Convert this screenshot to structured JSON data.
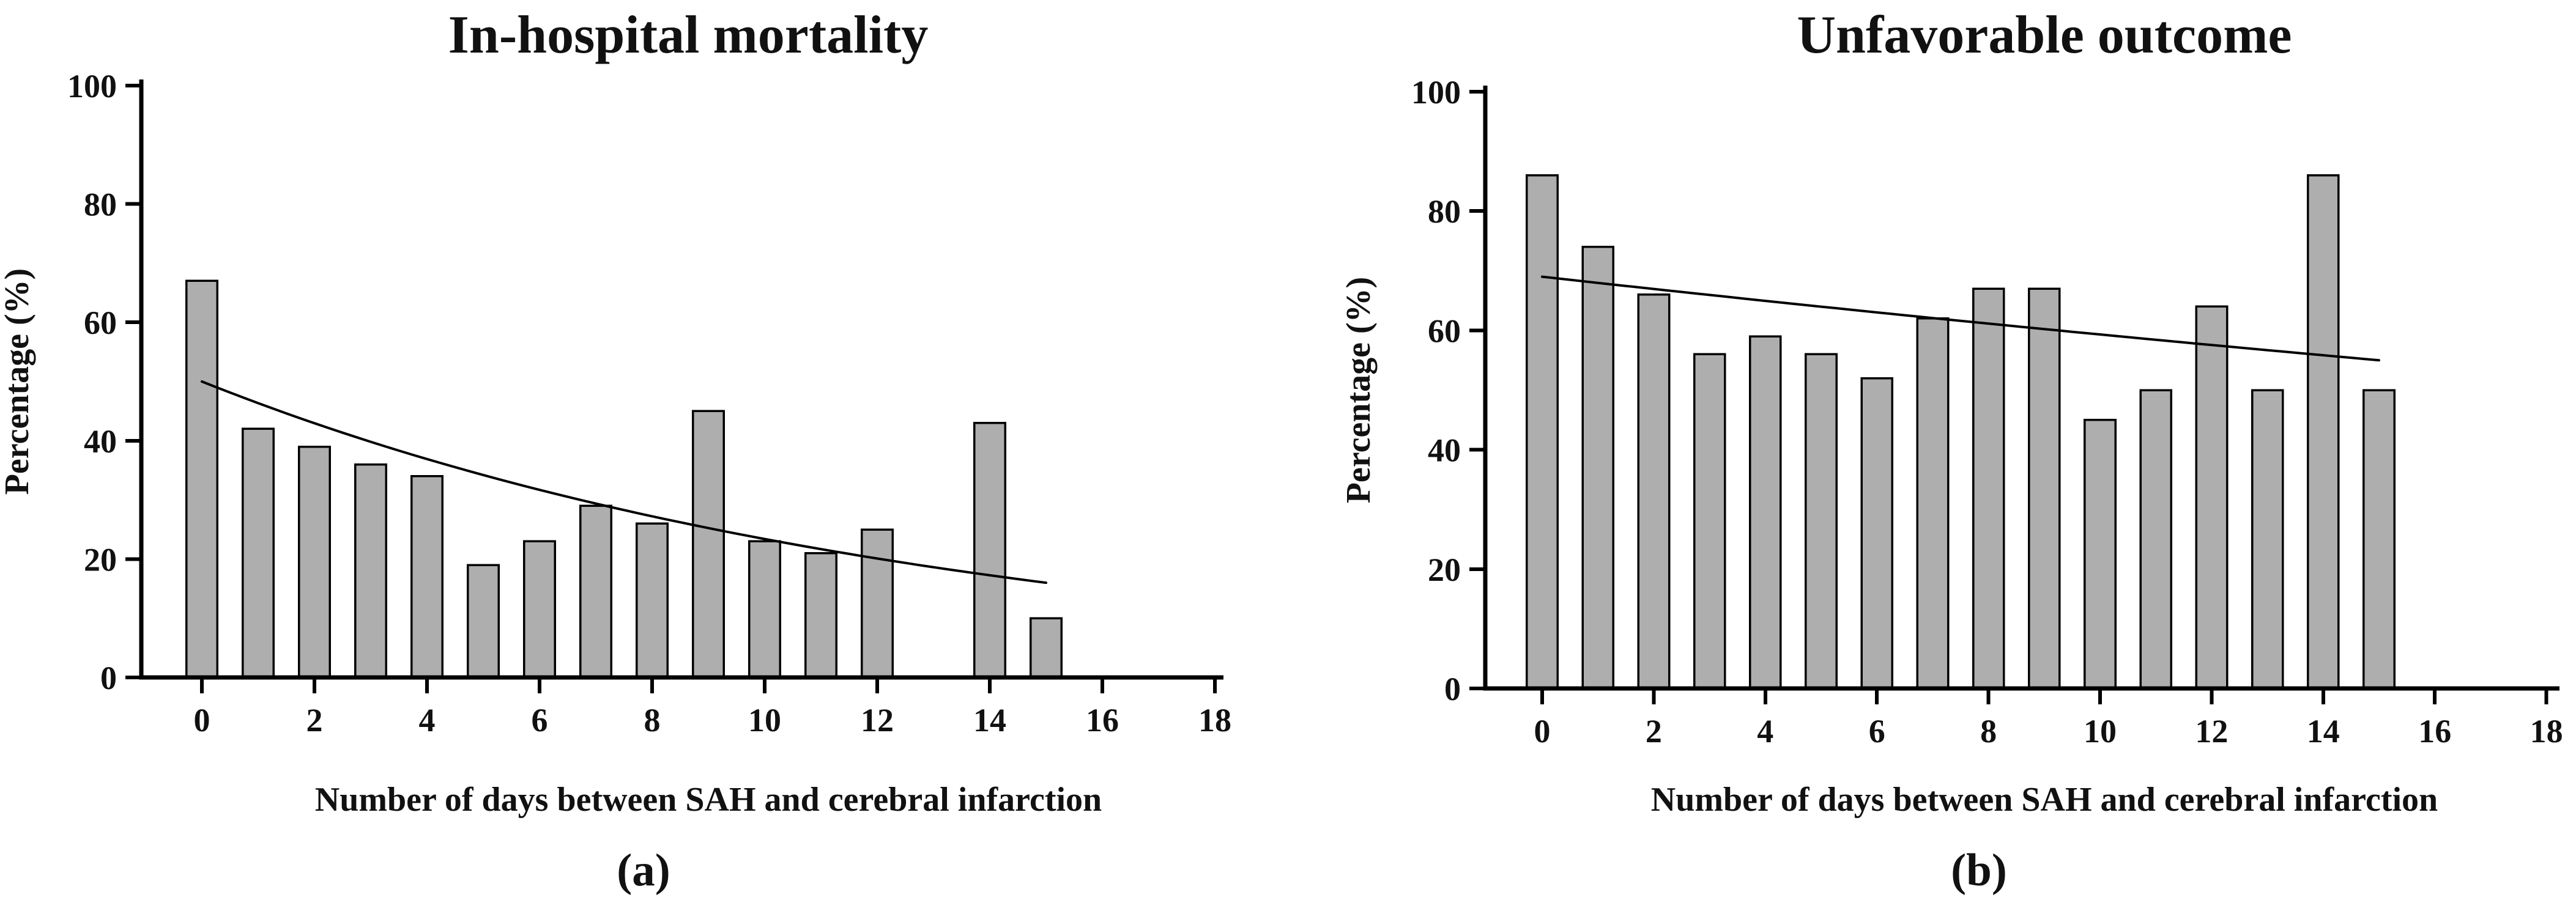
{
  "figure": {
    "background": "#ffffff",
    "bar_fill": "#aeaeae",
    "bar_edge": "#000000",
    "axis_color": "#000000",
    "trend_color": "#000000",
    "text_color": "#111111"
  },
  "chart_data": [
    {
      "type": "bar",
      "panel": "a",
      "title": "In-hospital mortality",
      "xlabel": "Number of days between SAH and cerebral infarction",
      "ylabel": "Percentage (%)",
      "caption": "(a)",
      "x": [
        0,
        1,
        2,
        3,
        4,
        5,
        6,
        7,
        8,
        9,
        10,
        11,
        12,
        13,
        14,
        15
      ],
      "values": [
        67,
        42,
        39,
        36,
        34,
        19,
        23,
        29,
        26,
        45,
        23,
        21,
        25,
        0,
        43,
        10
      ],
      "xlim": [
        0,
        18
      ],
      "ylim": [
        0,
        100
      ],
      "xticks": [
        0,
        2,
        4,
        6,
        8,
        10,
        12,
        14,
        16,
        18
      ],
      "yticks": [
        0,
        20,
        40,
        60,
        80,
        100
      ],
      "bar_width_units": 0.55,
      "grid": false,
      "legend": null,
      "trend": {
        "type": "exponential",
        "x_start": 0,
        "y_start": 50,
        "x_end": 15,
        "y_end": 16
      }
    },
    {
      "type": "bar",
      "panel": "b",
      "title": "Unfavorable outcome",
      "xlabel": "Number of days between SAH and cerebral infarction",
      "ylabel": "Percentage (%)",
      "caption": "(b)",
      "x": [
        0,
        1,
        2,
        3,
        4,
        5,
        6,
        7,
        8,
        9,
        10,
        11,
        12,
        13,
        14,
        15
      ],
      "values": [
        86,
        74,
        66,
        56,
        59,
        56,
        52,
        62,
        67,
        67,
        45,
        50,
        64,
        50,
        86,
        50
      ],
      "xlim": [
        0,
        18
      ],
      "ylim": [
        0,
        100
      ],
      "xticks": [
        0,
        2,
        4,
        6,
        8,
        10,
        12,
        14,
        16,
        18
      ],
      "yticks": [
        0,
        20,
        40,
        60,
        80,
        100
      ],
      "bar_width_units": 0.55,
      "grid": false,
      "legend": null,
      "trend": {
        "type": "exponential",
        "x_start": 0,
        "y_start": 69,
        "x_end": 15,
        "y_end": 55
      }
    }
  ]
}
